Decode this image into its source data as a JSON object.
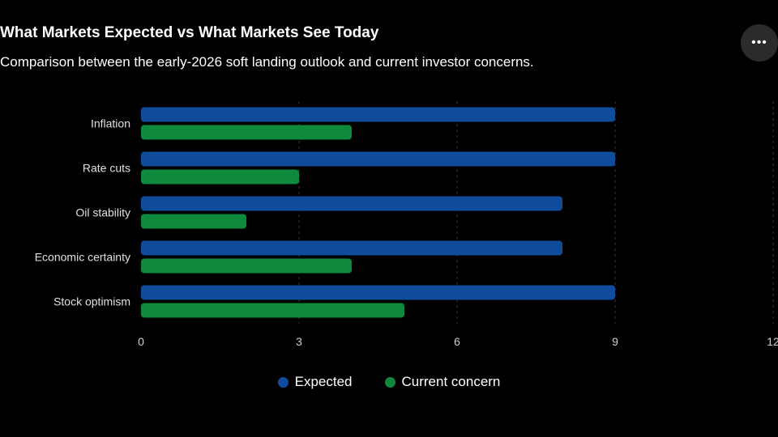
{
  "header": {
    "title": "What Markets Expected vs What Markets See Today",
    "subtitle": "Comparison between the early-2026 soft landing outlook and current investor concerns.",
    "more_icon": "more-horizontal-icon"
  },
  "chart_data": {
    "type": "bar",
    "orientation": "horizontal",
    "categories": [
      "Inflation",
      "Rate cuts",
      "Oil stability",
      "Economic certainty",
      "Stock optimism"
    ],
    "series": [
      {
        "name": "Expected",
        "color": "#0f4c9c",
        "values": [
          9,
          9,
          8,
          8,
          9
        ]
      },
      {
        "name": "Current concern",
        "color": "#0f8a3c",
        "values": [
          4,
          3,
          2,
          4,
          5
        ]
      }
    ],
    "xlim": [
      0,
      12
    ],
    "xticks": [
      "0",
      "3",
      "6",
      "9",
      "12"
    ],
    "grid": true,
    "legend_position": "bottom"
  }
}
